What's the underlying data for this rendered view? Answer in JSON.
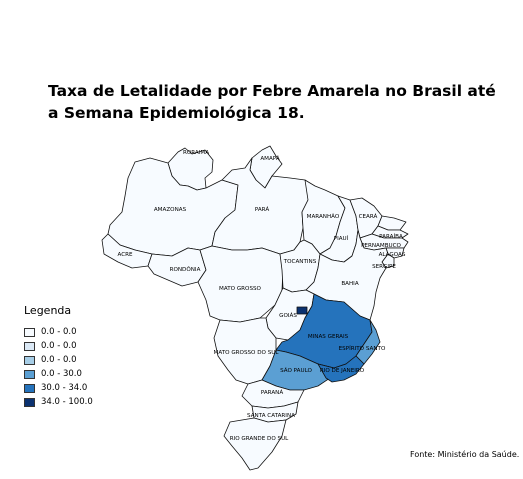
{
  "title": "Taxa de Letalidade por Febre Amarela no Brasil até a Semana Epidemiológica 18.",
  "legend": {
    "title": "Legenda",
    "items": [
      {
        "label": "0.0 - 0.0",
        "color": "#f7fbff"
      },
      {
        "label": "0.0 - 0.0",
        "color": "#dbe9f6"
      },
      {
        "label": "0.0 - 0.0",
        "color": "#a6cde6"
      },
      {
        "label": "0.0 - 30.0",
        "color": "#5b9fd3"
      },
      {
        "label": "30.0 - 34.0",
        "color": "#2573bc"
      },
      {
        "label": "34.0 - 100.0",
        "color": "#0b3270"
      }
    ]
  },
  "states": {
    "roraima": {
      "label": "RORAIMA",
      "class": 0
    },
    "amapa": {
      "label": "AMAPÁ",
      "class": 0
    },
    "amazonas": {
      "label": "AMAZONAS",
      "class": 0
    },
    "para": {
      "label": "PARÁ",
      "class": 0
    },
    "maranhao": {
      "label": "MARANHÃO",
      "class": 0
    },
    "ceara": {
      "label": "CEARÁ",
      "class": 0
    },
    "rio_grande_do_norte": {
      "label": "",
      "class": 0
    },
    "paraiba": {
      "label": "PARAÍBA",
      "class": 0
    },
    "pernambuco": {
      "label": "PERNAMBUCO",
      "class": 0
    },
    "alagoas": {
      "label": "ALAGOAS",
      "class": 0
    },
    "sergipe": {
      "label": "SERGIPE",
      "class": 0
    },
    "piaui": {
      "label": "PIAUÍ",
      "class": 0
    },
    "acre": {
      "label": "ACRE",
      "class": 0
    },
    "rondonia": {
      "label": "RONDÔNIA",
      "class": 0
    },
    "tocantins": {
      "label": "TOCANTINS",
      "class": 0
    },
    "bahia": {
      "label": "BAHIA",
      "class": 0
    },
    "mato_grosso": {
      "label": "MATO GROSSO",
      "class": 0
    },
    "goias": {
      "label": "GOIÁS",
      "class": 0
    },
    "distrito_federal": {
      "label": "",
      "class": 5
    },
    "minas_gerais": {
      "label": "MINAS GERAIS",
      "class": 4
    },
    "espirito_santo": {
      "label": "ESPÍRITO SANTO",
      "class": 3
    },
    "mato_grosso_do_sul": {
      "label": "MATO GROSSO DO SUL",
      "class": 0
    },
    "sao_paulo": {
      "label": "SÃO PAULO",
      "class": 3
    },
    "rio_de_janeiro": {
      "label": "RIO DE JANEIRO",
      "class": 4
    },
    "parana": {
      "label": "PARANÁ",
      "class": 0
    },
    "santa_catarina": {
      "label": "SANTA CATARINA",
      "class": 0
    },
    "rio_grande_do_sul": {
      "label": "RIO GRANDE DO SUL",
      "class": 0
    }
  },
  "source": "Fonte: Ministério da Saúde."
}
